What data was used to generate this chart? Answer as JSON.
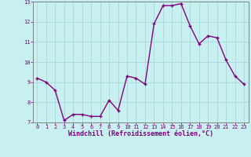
{
  "x": [
    0,
    1,
    2,
    3,
    4,
    5,
    6,
    7,
    8,
    9,
    10,
    11,
    12,
    13,
    14,
    15,
    16,
    17,
    18,
    19,
    20,
    21,
    22,
    23
  ],
  "y": [
    9.2,
    9.0,
    8.6,
    7.1,
    7.4,
    7.4,
    7.3,
    7.3,
    8.1,
    7.6,
    9.3,
    9.2,
    8.9,
    11.9,
    12.8,
    12.8,
    12.9,
    11.8,
    10.9,
    11.3,
    11.2,
    10.1,
    9.3,
    8.9
  ],
  "line_color": "#800080",
  "marker": "+",
  "marker_size": 3.5,
  "bg_color": "#c8f0f0",
  "grid_color": "#a8d8d8",
  "xlabel": "Windchill (Refroidissement éolien,°C)",
  "ylim": [
    7,
    13
  ],
  "yticks": [
    7,
    8,
    9,
    10,
    11,
    12,
    13
  ],
  "xticks": [
    0,
    1,
    2,
    3,
    4,
    5,
    6,
    7,
    8,
    9,
    10,
    11,
    12,
    13,
    14,
    15,
    16,
    17,
    18,
    19,
    20,
    21,
    22,
    23
  ],
  "label_color": "#800080",
  "font_family": "monospace",
  "linewidth": 1.0,
  "tick_fontsize": 5.0,
  "xlabel_fontsize": 6.0,
  "xlabel_fontweight": "bold",
  "marker_edge_width": 1.0,
  "spine_color": "#808080",
  "xlim": [
    -0.5,
    23.5
  ]
}
